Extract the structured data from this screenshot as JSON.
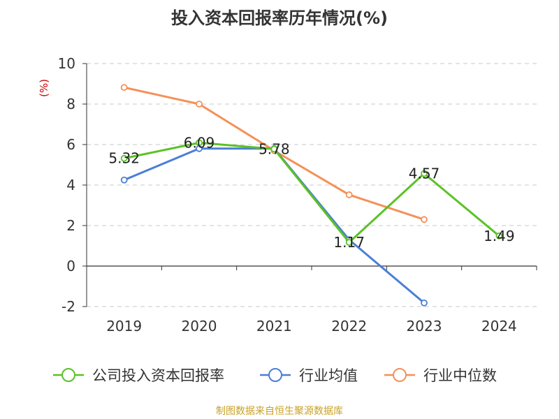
{
  "chart_data": {
    "type": "line",
    "title": "投入资本回报率历年情况(%)",
    "ylabel": "(%)",
    "xlabel": "",
    "categories": [
      "2019",
      "2020",
      "2021",
      "2022",
      "2023",
      "2024"
    ],
    "ylim": [
      -2,
      10
    ],
    "yticks": [
      -2,
      0,
      2,
      4,
      6,
      8,
      10
    ],
    "grid": true,
    "legend_position": "bottom",
    "series": [
      {
        "name": "公司投入资本回报率",
        "color": "#5bc226",
        "values": [
          5.32,
          6.09,
          5.78,
          1.17,
          4.57,
          1.49
        ],
        "labels": [
          "5.32",
          "6.09",
          "5.78",
          "1.17",
          "4.57",
          "1.49"
        ]
      },
      {
        "name": "行业均值",
        "color": "#4a7fd6",
        "values": [
          4.25,
          5.8,
          5.8,
          1.3,
          -1.82,
          null
        ]
      },
      {
        "name": "行业中位数",
        "color": "#f59056",
        "values": [
          8.82,
          8.0,
          5.7,
          3.52,
          2.3,
          null
        ]
      }
    ]
  },
  "source_text": "制图数据来自恒生聚源数据库"
}
